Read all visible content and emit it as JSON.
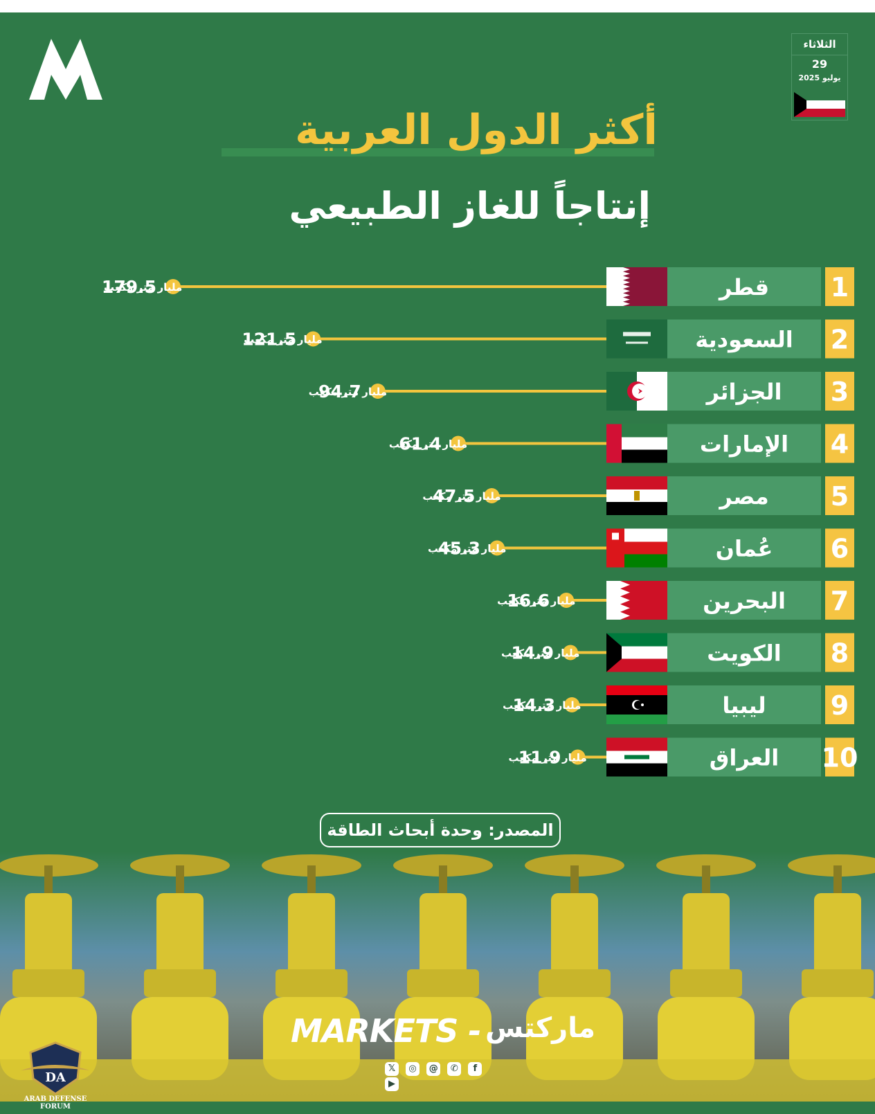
{
  "header": {
    "date_weekday": "الثلاثاء",
    "date_day": "29",
    "date_monthyear": "يوليو 2025",
    "title_line1": "أكثر الدول العربية",
    "title_line2": "إنتاجاً للغاز الطبيعي"
  },
  "chart_data": {
    "type": "bar",
    "orientation": "horizontal",
    "unit": "مليار متر مكعب",
    "items": [
      {
        "rank": "1",
        "country": "قطر",
        "value": 179.5,
        "value_label": "179.5",
        "flag": "qatar-flag"
      },
      {
        "rank": "2",
        "country": "السعودية",
        "value": 121.5,
        "value_label": "121.5",
        "flag": "saudi-flag"
      },
      {
        "rank": "3",
        "country": "الجزائر",
        "value": 94.7,
        "value_label": "94.7",
        "flag": "algeria-flag"
      },
      {
        "rank": "4",
        "country": "الإمارات",
        "value": 61.4,
        "value_label": "61.4",
        "flag": "uae-flag"
      },
      {
        "rank": "5",
        "country": "مصر",
        "value": 47.5,
        "value_label": "47.5",
        "flag": "egypt-flag"
      },
      {
        "rank": "6",
        "country": "عُمان",
        "value": 45.3,
        "value_label": "45.3",
        "flag": "oman-flag"
      },
      {
        "rank": "7",
        "country": "البحرين",
        "value": 16.6,
        "value_label": "16.6",
        "flag": "bahrain-flag"
      },
      {
        "rank": "8",
        "country": "الكويت",
        "value": 14.9,
        "value_label": "14.9",
        "flag": "kuwait-flag"
      },
      {
        "rank": "9",
        "country": "ليبيا",
        "value": 14.3,
        "value_label": "14.3",
        "flag": "libya-flag"
      },
      {
        "rank": "10",
        "country": "العراق",
        "value": 11.9,
        "value_label": "11.9",
        "flag": "iraq-flag"
      }
    ]
  },
  "source": "المصدر: وحدة أبحاث الطاقة",
  "footer": {
    "brand_latin": "MARKETS -",
    "brand_arabic": "ماركتس",
    "social_icons": [
      "x-icon",
      "instagram-icon",
      "threads-icon",
      "whatsapp-icon",
      "facebook-icon",
      "youtube-icon"
    ],
    "forum_name": "ARAB DEFENSE FORUM",
    "forum_initials": "DA"
  },
  "colors": {
    "background": "#2f7a48",
    "accent": "#f3c53e",
    "name_box": "#4a9a68"
  }
}
